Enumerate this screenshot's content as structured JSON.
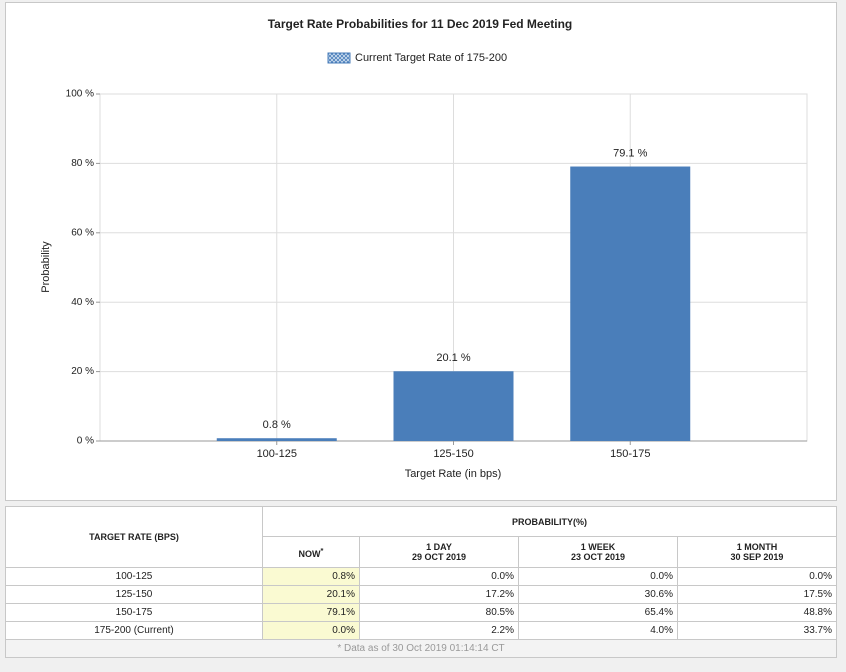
{
  "chart_data": {
    "type": "bar",
    "title": "Target Rate Probabilities for 11 Dec 2019 Fed Meeting",
    "x_label": "Target Rate (in bps)",
    "y_label": "Probability",
    "categories": [
      "100-125",
      "125-150",
      "150-175"
    ],
    "series": [
      {
        "name": "Current Target Rate of 175-200",
        "color": "#4a7eba",
        "values": [
          0.8,
          20.1,
          79.1
        ],
        "value_labels": [
          "0.8 %",
          "20.1 %",
          "79.1 %"
        ]
      }
    ],
    "ylim": [
      0,
      100
    ],
    "yticks": [
      {
        "value": 0,
        "label": "0 %"
      },
      {
        "value": 20,
        "label": "20 %"
      },
      {
        "value": 40,
        "label": "40 %"
      },
      {
        "value": 60,
        "label": "60 %"
      },
      {
        "value": 80,
        "label": "80 %"
      },
      {
        "value": 100,
        "label": "100 %"
      }
    ],
    "grid": true,
    "legend": "top"
  },
  "table": {
    "header": {
      "rate": "TARGET RATE (BPS)",
      "probability": "PROBABILITY(%)",
      "columns": [
        {
          "label": "NOW",
          "note": "*"
        },
        {
          "label": "1 DAY",
          "date": "29 OCT 2019"
        },
        {
          "label": "1 WEEK",
          "date": "23 OCT 2019"
        },
        {
          "label": "1 MONTH",
          "date": "30 SEP 2019"
        }
      ]
    },
    "rows": [
      [
        "100-125",
        "0.8%",
        "0.0%",
        "0.0%",
        "0.0%"
      ],
      [
        "125-150",
        "20.1%",
        "17.2%",
        "30.6%",
        "17.5%"
      ],
      [
        "150-175",
        "79.1%",
        "80.5%",
        "65.4%",
        "48.8%"
      ],
      [
        "175-200 (Current)",
        "0.0%",
        "2.2%",
        "4.0%",
        "33.7%"
      ]
    ],
    "footnote": "* Data as of 30 Oct 2019 01:14:14 CT"
  }
}
